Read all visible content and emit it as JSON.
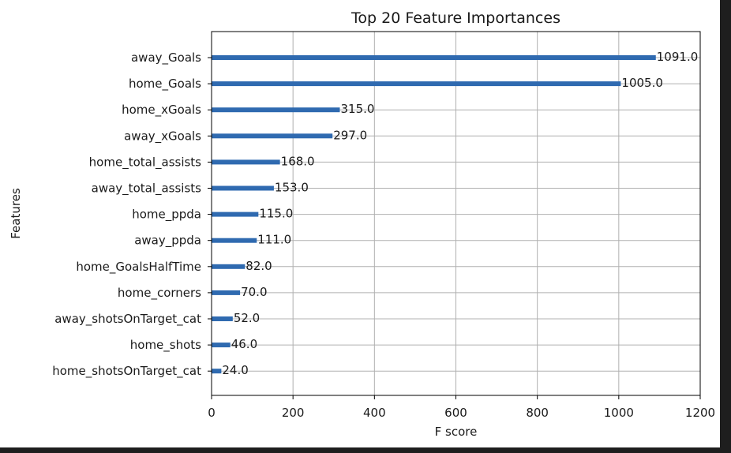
{
  "chart_data": {
    "type": "bar",
    "orientation": "horizontal",
    "title": "Top 20 Feature Importances",
    "xlabel": "F score",
    "ylabel": "Features",
    "xlim": [
      0,
      1200
    ],
    "xticks": [
      0,
      200,
      400,
      600,
      800,
      1000,
      1200
    ],
    "grid": true,
    "bar_color": "#2f6ab0",
    "categories": [
      "away_Goals",
      "home_Goals",
      "home_xGoals",
      "away_xGoals",
      "home_total_assists",
      "away_total_assists",
      "home_ppda",
      "away_ppda",
      "home_GoalsHalfTime",
      "home_corners",
      "away_shotsOnTarget_cat",
      "home_shots",
      "home_shotsOnTarget_cat"
    ],
    "values": [
      1091.0,
      1005.0,
      315.0,
      297.0,
      168.0,
      153.0,
      115.0,
      111.0,
      82.0,
      70.0,
      52.0,
      46.0,
      24.0
    ],
    "data_labels": [
      "1091.0",
      "1005.0",
      "315.0",
      "297.0",
      "168.0",
      "153.0",
      "115.0",
      "111.0",
      "82.0",
      "70.0",
      "52.0",
      "46.0",
      "24.0"
    ]
  }
}
